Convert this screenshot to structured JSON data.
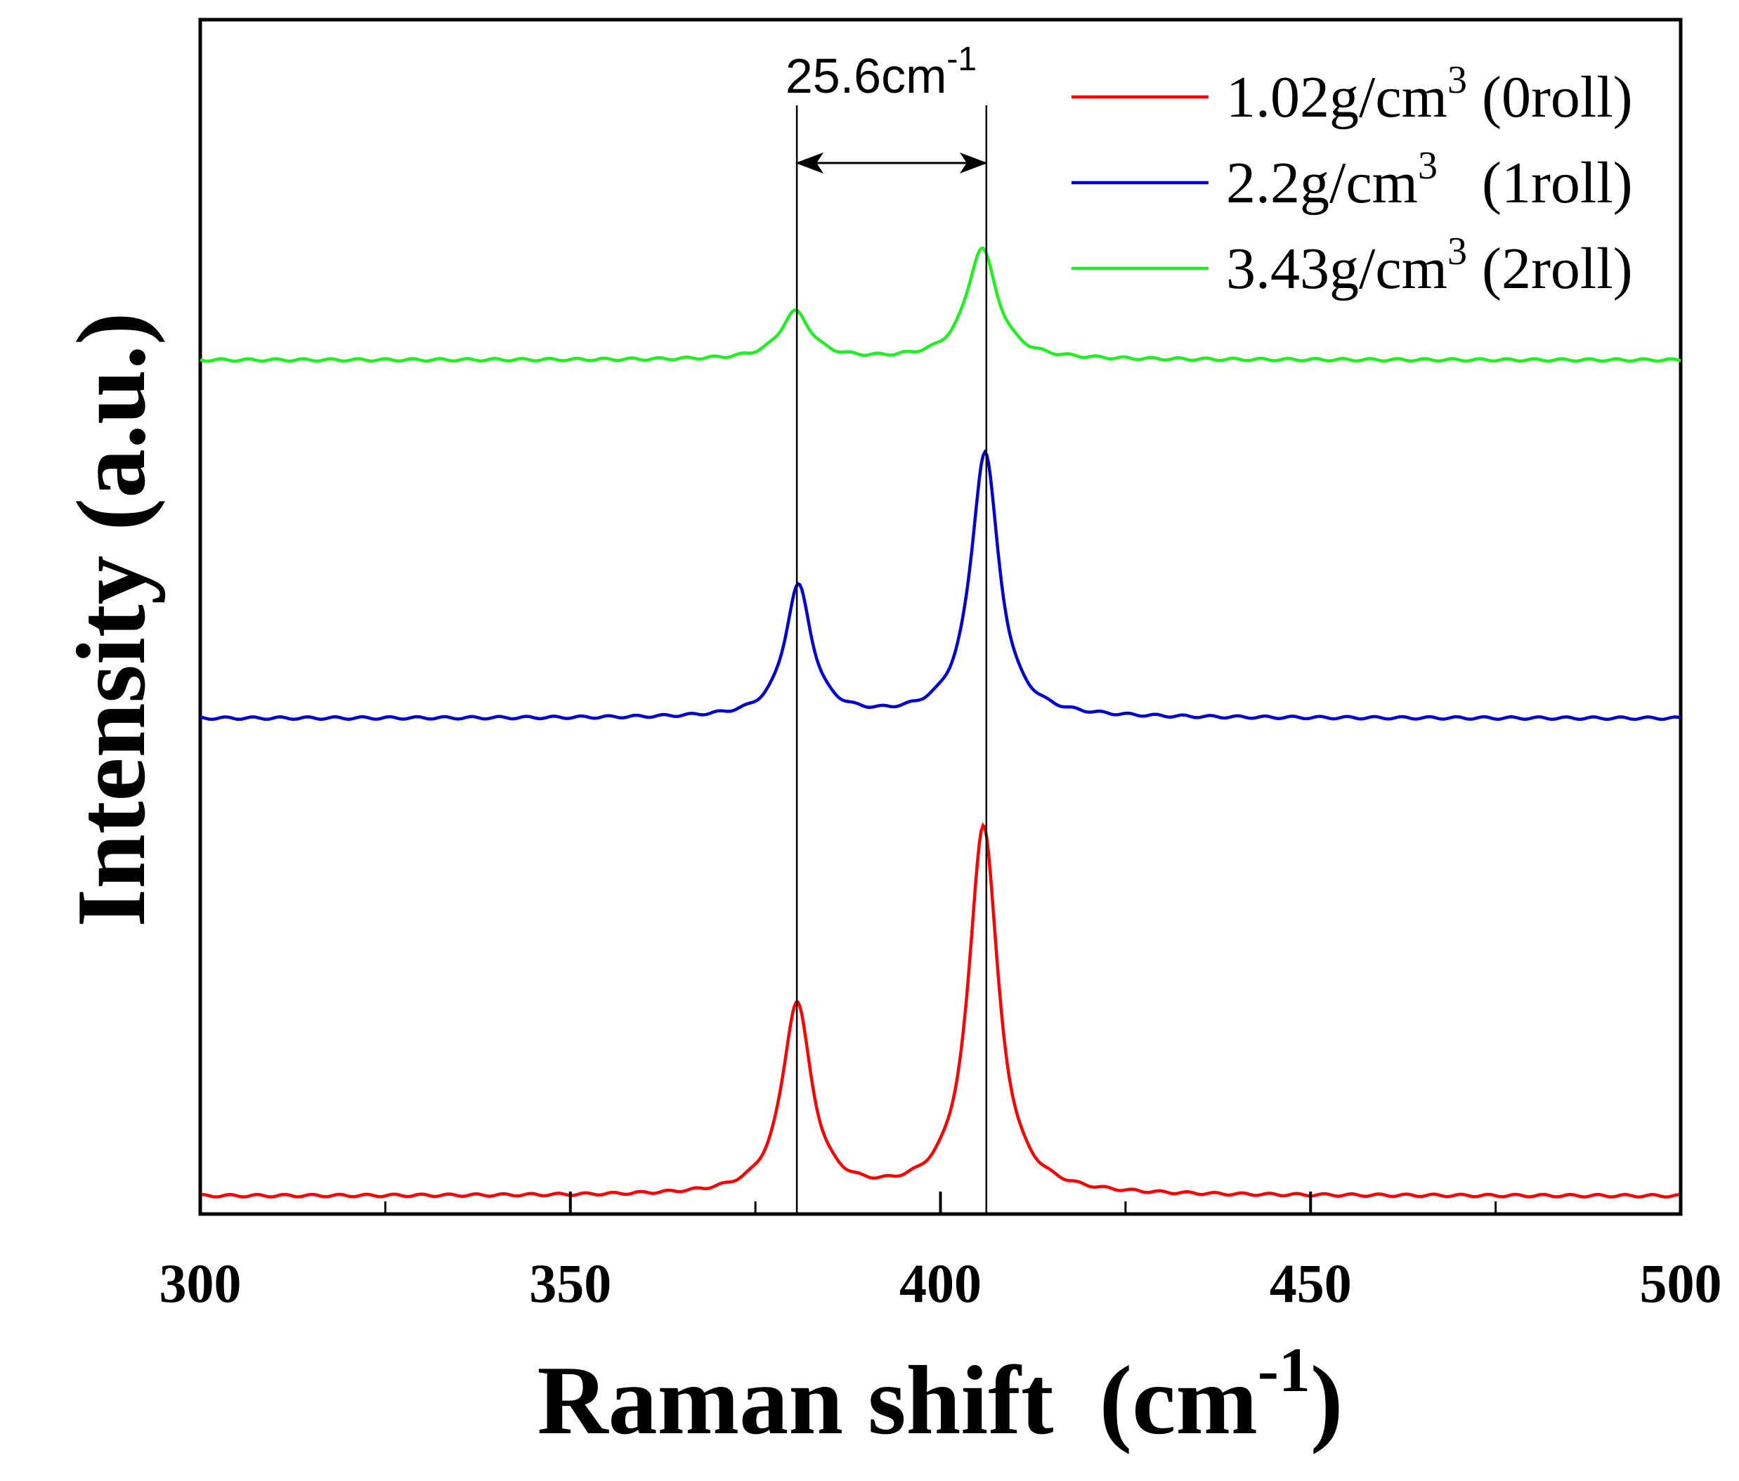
{
  "chart_data": {
    "type": "line",
    "title": "",
    "xlabel": "Raman shift",
    "xlabel_unit": "(cm",
    "xlabel_sup": "-1",
    "xlabel_close": ")",
    "ylabel": "Intensity (a.u.)",
    "xlim": [
      300,
      500
    ],
    "ylim": [
      0,
      100
    ],
    "x_ticks": [
      300,
      350,
      400,
      450,
      500
    ],
    "x_tick_labels": [
      "300",
      "350",
      "400",
      "450",
      "500"
    ],
    "x_minor_ticks": [
      325,
      375,
      425,
      475
    ],
    "y_ticks_visible": false,
    "legend_position": "top-right",
    "series": [
      {
        "name": "1.02g/cm3 (0roll)",
        "legend_parts": [
          "1.02g/cm",
          "3",
          " (0roll)"
        ],
        "color": "#ff0000",
        "baseline": 1.5,
        "peaks": [
          {
            "center": 380.6,
            "height": 16.0,
            "width": 2.4
          },
          {
            "center": 405.8,
            "height": 31.0,
            "width": 2.4
          }
        ]
      },
      {
        "name": "2.2g/cm3 (1roll)",
        "legend_parts": [
          "2.2g/cm",
          "3",
          "   (1roll)"
        ],
        "color": "#0000d0",
        "baseline": 41.5,
        "peaks": [
          {
            "center": 380.8,
            "height": 11.0,
            "width": 2.2
          },
          {
            "center": 406.0,
            "height": 22.2,
            "width": 2.3
          }
        ]
      },
      {
        "name": "3.43g/cm3 (2roll)",
        "legend_parts": [
          "3.43g/cm",
          "3",
          " (2roll)"
        ],
        "color": "#22ee22",
        "baseline": 71.5,
        "peaks": [
          {
            "center": 380.4,
            "height": 4.0,
            "width": 2.5
          },
          {
            "center": 405.6,
            "height": 9.3,
            "width": 2.5
          }
        ]
      }
    ],
    "annotations": {
      "vertical_lines_x": [
        380.6,
        406.2
      ],
      "shift_label": "25.6cm",
      "shift_label_sup": "-1",
      "arrow_y": 88
    }
  }
}
